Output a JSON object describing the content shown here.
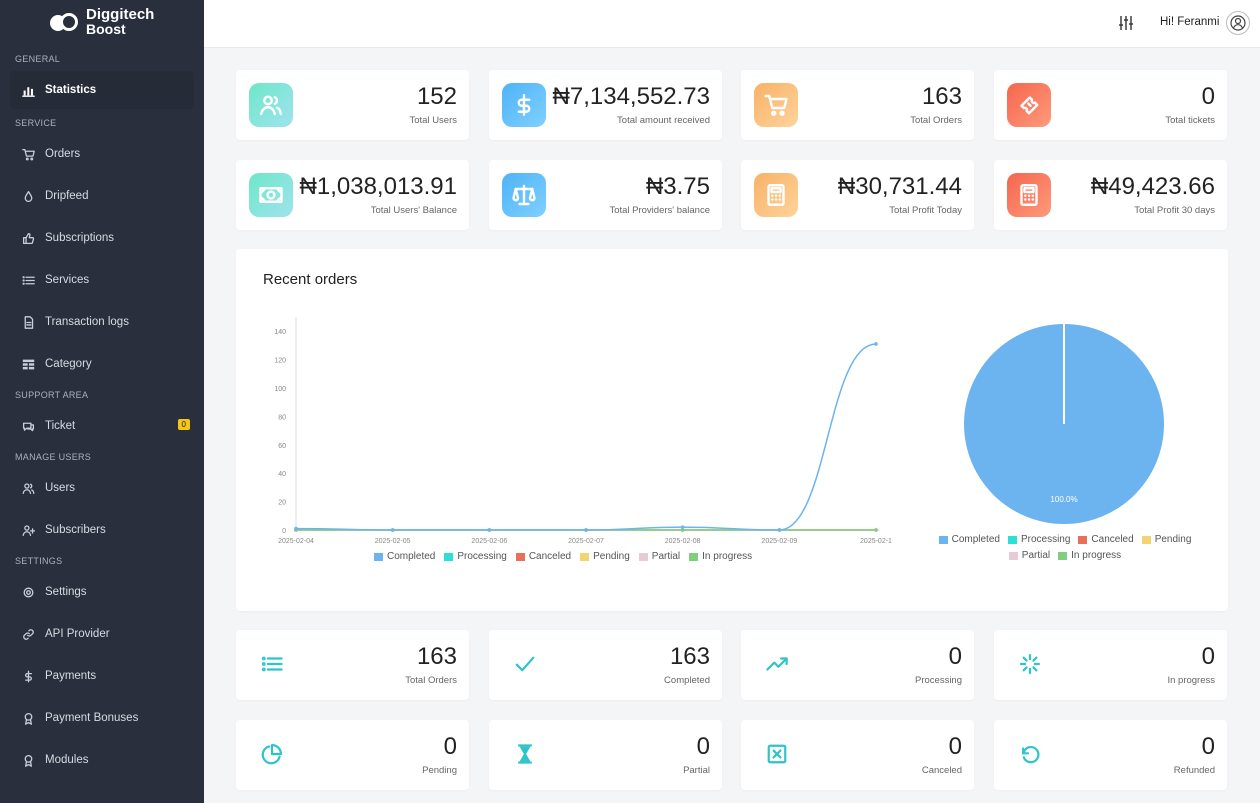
{
  "brand": {
    "line1": "Diggitech",
    "line2": "Boost"
  },
  "sidebar": {
    "sections": [
      {
        "title": "GENERAL",
        "items": [
          {
            "label": "Statistics",
            "icon": "bar-chart-icon",
            "active": true
          }
        ]
      },
      {
        "title": "SERVICE",
        "items": [
          {
            "label": "Orders",
            "icon": "cart-icon"
          },
          {
            "label": "Dripfeed",
            "icon": "drop-icon"
          },
          {
            "label": "Subscriptions",
            "icon": "thumb-up-icon"
          },
          {
            "label": "Services",
            "icon": "list-icon"
          },
          {
            "label": "Transaction logs",
            "icon": "document-icon"
          },
          {
            "label": "Category",
            "icon": "table-icon"
          }
        ]
      },
      {
        "title": "SUPPORT AREA",
        "items": [
          {
            "label": "Ticket",
            "icon": "chat-icon",
            "badge": "0"
          }
        ]
      },
      {
        "title": "MANAGE USERS",
        "items": [
          {
            "label": "Users",
            "icon": "users-icon"
          },
          {
            "label": "Subscribers",
            "icon": "user-plus-icon"
          }
        ]
      },
      {
        "title": "SETTINGS",
        "items": [
          {
            "label": "Settings",
            "icon": "gear-icon"
          },
          {
            "label": "API Provider",
            "icon": "link-icon"
          },
          {
            "label": "Payments",
            "icon": "dollar-icon"
          },
          {
            "label": "Payment Bonuses",
            "icon": "award-icon"
          },
          {
            "label": "Modules",
            "icon": "award-icon"
          }
        ]
      }
    ]
  },
  "topbar": {
    "greeting": "Hi! Feranmi"
  },
  "stats_top": [
    {
      "value": "152",
      "label": "Total Users",
      "icon": "users-icon",
      "grad": [
        "#6ee7c8",
        "#9fe3ee"
      ]
    },
    {
      "value": "₦7,134,552.73",
      "label": "Total amount received",
      "icon": "dollar-icon",
      "grad": [
        "#4fb3f6",
        "#7fd0ff"
      ]
    },
    {
      "value": "163",
      "label": "Total Orders",
      "icon": "cart-icon",
      "grad": [
        "#f7b267",
        "#ffd39a"
      ]
    },
    {
      "value": "0",
      "label": "Total tickets",
      "icon": "ticket-icon",
      "grad": [
        "#f4664e",
        "#ff9a7b"
      ]
    }
  ],
  "stats_second": [
    {
      "value": "₦1,038,013.91",
      "label": "Total Users' Balance",
      "icon": "money-icon",
      "grad": [
        "#6ee7c8",
        "#9fe3ee"
      ]
    },
    {
      "value": "₦3.75",
      "label": "Total Providers' balance",
      "icon": "scale-icon",
      "grad": [
        "#4fb3f6",
        "#7fd0ff"
      ]
    },
    {
      "value": "₦30,731.44",
      "label": "Total Profit Today",
      "icon": "calculator-icon",
      "grad": [
        "#f7b267",
        "#ffd39a"
      ]
    },
    {
      "value": "₦49,423.66",
      "label": "Total Profit 30 days",
      "icon": "calculator-icon",
      "grad": [
        "#f4664e",
        "#ff9a7b"
      ]
    }
  ],
  "recent_orders": {
    "title": "Recent orders"
  },
  "chart_data": [
    {
      "type": "line",
      "x": [
        "2025-02-04",
        "2025-02-05",
        "2025-02-06",
        "2025-02-07",
        "2025-02-08",
        "2025-02-09",
        "2025-02-1"
      ],
      "yticks": [
        0,
        20,
        40,
        60,
        80,
        100,
        120,
        140
      ],
      "ylim": [
        0,
        150
      ],
      "series": [
        {
          "name": "Completed",
          "color": "#6cb4ef",
          "values": [
            1,
            0,
            0,
            0,
            2,
            0,
            131
          ]
        },
        {
          "name": "Processing",
          "color": "#2de0d6",
          "values": [
            0,
            0,
            0,
            0,
            0,
            0,
            0
          ]
        },
        {
          "name": "Canceled",
          "color": "#e8705a",
          "values": [
            0,
            0,
            0,
            0,
            0,
            0,
            0
          ]
        },
        {
          "name": "Pending",
          "color": "#f2d472",
          "values": [
            0,
            0,
            0,
            0,
            0,
            0,
            0
          ]
        },
        {
          "name": "Partial",
          "color": "#e8c9d6",
          "values": [
            0,
            0,
            0,
            0,
            0,
            0,
            0
          ]
        },
        {
          "name": "In progress",
          "color": "#7fcf7f",
          "values": [
            0,
            0,
            0,
            0,
            0,
            0,
            0
          ]
        }
      ]
    },
    {
      "type": "pie",
      "slices": [
        {
          "name": "Completed",
          "value": 100.0,
          "label": "100.0%",
          "color": "#6cb4ef"
        }
      ],
      "legend": [
        {
          "name": "Completed",
          "color": "#6cb4ef"
        },
        {
          "name": "Processing",
          "color": "#2de0d6"
        },
        {
          "name": "Canceled",
          "color": "#e8705a"
        },
        {
          "name": "Pending",
          "color": "#f2d472"
        },
        {
          "name": "Partial",
          "color": "#e8c9d6"
        },
        {
          "name": "In progress",
          "color": "#7fcf7f"
        }
      ]
    }
  ],
  "order_status_row1": [
    {
      "value": "163",
      "label": "Total Orders",
      "icon": "list-icon"
    },
    {
      "value": "163",
      "label": "Completed",
      "icon": "check-icon"
    },
    {
      "value": "0",
      "label": "Processing",
      "icon": "trending-up-icon"
    },
    {
      "value": "0",
      "label": "In progress",
      "icon": "loader-icon"
    }
  ],
  "order_status_row2": [
    {
      "value": "0",
      "label": "Pending",
      "icon": "pie-icon"
    },
    {
      "value": "0",
      "label": "Partial",
      "icon": "hourglass-icon"
    },
    {
      "value": "0",
      "label": "Canceled",
      "icon": "x-square-icon"
    },
    {
      "value": "0",
      "label": "Refunded",
      "icon": "rotate-ccw-icon"
    }
  ],
  "accent": "#2ec4c9"
}
